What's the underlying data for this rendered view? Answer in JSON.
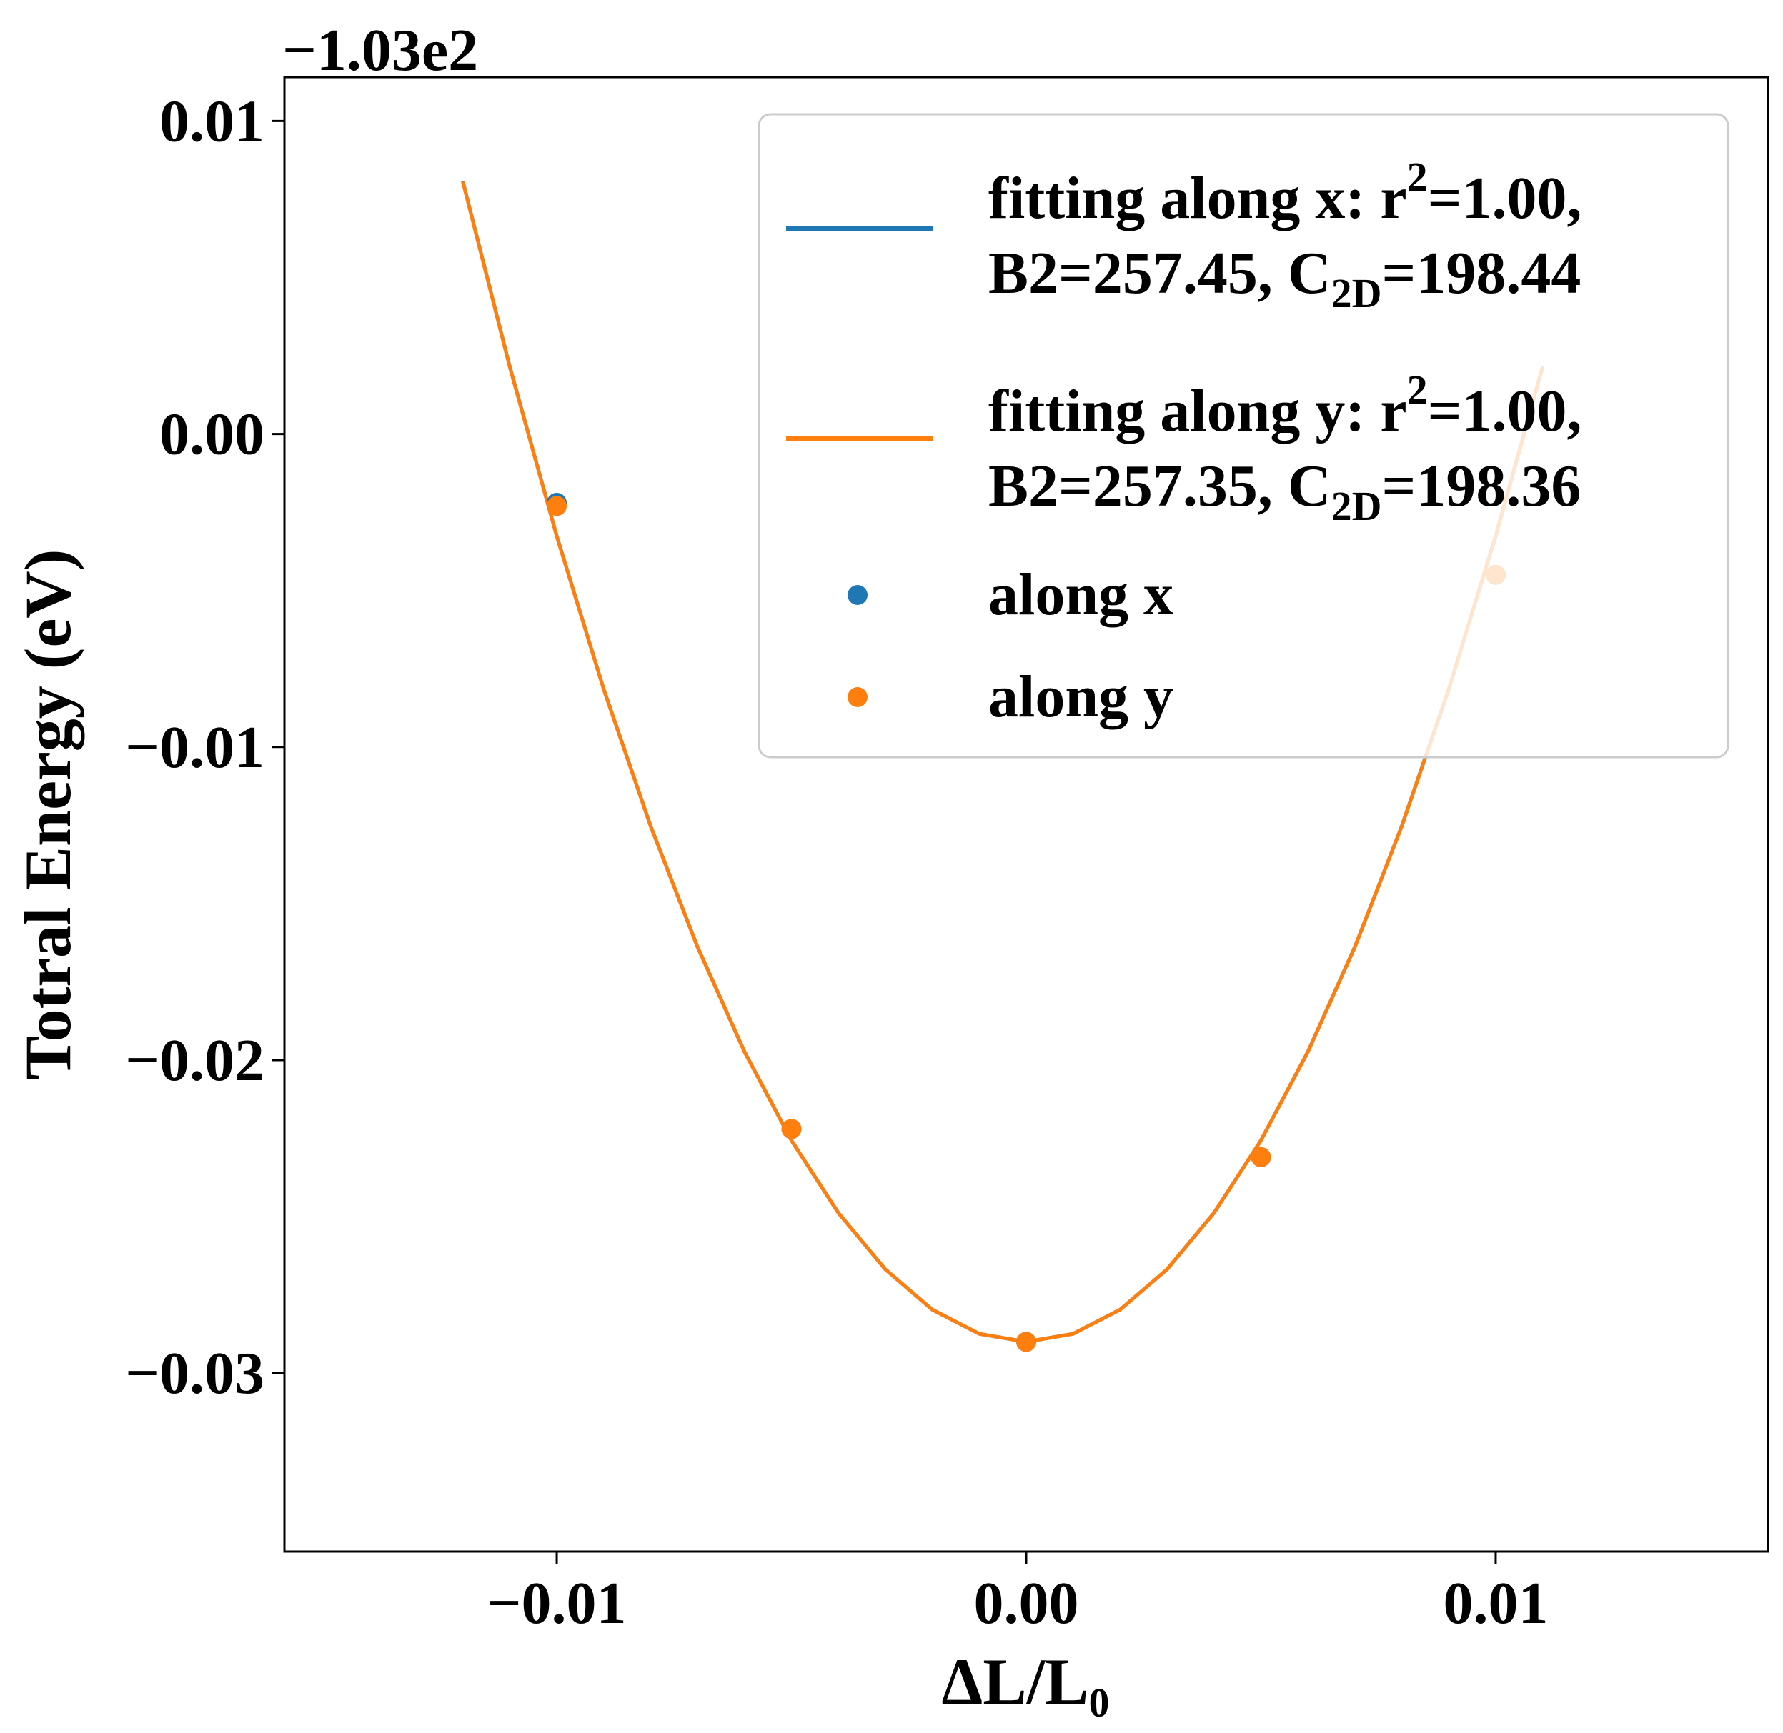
{
  "chart_data": {
    "type": "line",
    "xlabel": {
      "main": "ΔL/L",
      "sub": "0"
    },
    "ylabel": "Totral Energy (eV)",
    "y_offset_label": "−1.03e2",
    "xlim": [
      -0.0158,
      0.0158
    ],
    "ylim": [
      -0.0357,
      0.0114
    ],
    "x_ticks": [
      {
        "value": -0.01,
        "label": "−0.01"
      },
      {
        "value": 0.0,
        "label": "0.00"
      },
      {
        "value": 0.01,
        "label": "0.01"
      }
    ],
    "y_ticks": [
      {
        "value": 0.01,
        "label": "0.01"
      },
      {
        "value": 0.0,
        "label": "0.00"
      },
      {
        "value": -0.01,
        "label": "−0.01"
      },
      {
        "value": -0.02,
        "label": "−0.02"
      },
      {
        "value": -0.03,
        "label": "−0.03"
      }
    ],
    "grid": false,
    "legend_placement": "top-right",
    "fit_x_range": [
      -0.012,
      0.011
    ],
    "fit_x_step": 0.001,
    "series": [
      {
        "name": "fitting along x",
        "kind": "line",
        "color": "#1f77b4",
        "fit": {
          "a": 257.45,
          "b": 0.0,
          "c": -0.029
        },
        "legend": {
          "line1": "fitting along x: r",
          "sup": "2",
          "line1_tail": "=1.00,",
          "line2_head": "B2=257.45, C",
          "sub": "2D",
          "line2_tail": "=198.44"
        }
      },
      {
        "name": "fitting along y",
        "kind": "line",
        "color": "#ff7f0e",
        "fit": {
          "a": 257.35,
          "b": 0.0,
          "c": -0.029
        },
        "legend": {
          "line1": "fitting along y: r",
          "sup": "2",
          "line1_tail": "=1.00,",
          "line2_head": "B2=257.35, C",
          "sub": "2D",
          "line2_tail": "=198.36"
        }
      },
      {
        "name": "along x",
        "kind": "scatter",
        "color": "#1f77b4",
        "x": [
          -0.01,
          -0.005,
          0.0,
          0.005,
          0.01
        ],
        "y": [
          -0.0022,
          -0.0222,
          -0.029,
          -0.0231,
          -0.0045
        ]
      },
      {
        "name": "along y",
        "kind": "scatter",
        "color": "#ff7f0e",
        "x": [
          -0.01,
          -0.005,
          0.0,
          0.005,
          0.01
        ],
        "y": [
          -0.0023,
          -0.0222,
          -0.029,
          -0.0231,
          -0.0045
        ]
      }
    ]
  }
}
